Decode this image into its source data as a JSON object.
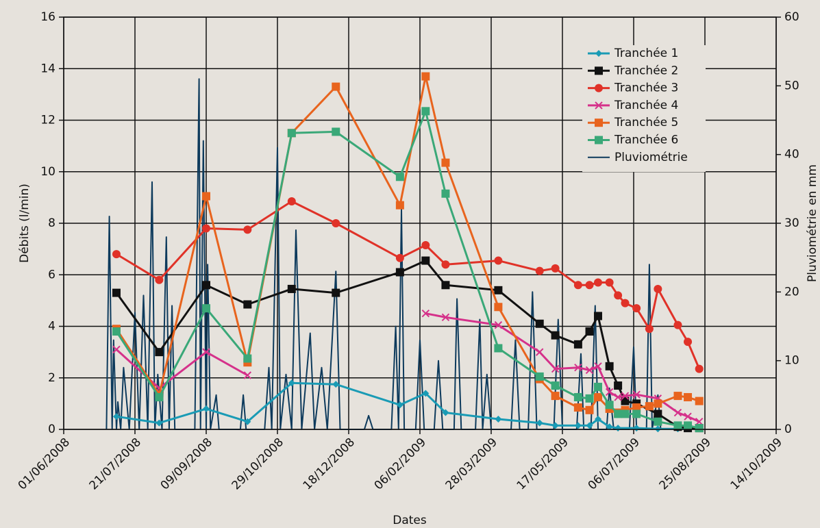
{
  "chart_data": {
    "type": "line",
    "x_label": "Dates",
    "y_label": "Débits (l/min)",
    "y2_label": "Pluviométrie en mm",
    "xlim": [
      "2008-06-01",
      "2009-10-14"
    ],
    "xticks": [
      {
        "value": "2008-06-01",
        "label": "01/06/2008"
      },
      {
        "value": "2008-07-21",
        "label": "21/07/2008"
      },
      {
        "value": "2008-09-09",
        "label": "09/09/2008"
      },
      {
        "value": "2008-10-29",
        "label": "29/10/2008"
      },
      {
        "value": "2008-12-18",
        "label": "18/12/2008"
      },
      {
        "value": "2009-02-06",
        "label": "06/02/2009"
      },
      {
        "value": "2009-03-28",
        "label": "28/03/2009"
      },
      {
        "value": "2009-05-17",
        "label": "17/05/2009"
      },
      {
        "value": "2009-07-06",
        "label": "06/07/2009"
      },
      {
        "value": "2009-08-25",
        "label": "25/08/2009"
      },
      {
        "value": "2009-10-14",
        "label": "14/10/2009"
      }
    ],
    "ylim": [
      0,
      16
    ],
    "yticks": [
      0,
      2,
      4,
      6,
      8,
      10,
      12,
      14,
      16
    ],
    "y2lim": [
      0,
      60
    ],
    "y2ticks": [
      0,
      10,
      20,
      30,
      40,
      50,
      60
    ],
    "grid": true,
    "legend": "upper right",
    "series": [
      {
        "name": "Tranchée 1",
        "color": "#1a9bb5",
        "marker": "diamond",
        "x": [
          "2008-07-08",
          "2008-08-07",
          "2008-09-09",
          "2008-10-08",
          "2008-11-08",
          "2008-12-09",
          "2009-01-23",
          "2009-02-10",
          "2009-02-24",
          "2009-04-02",
          "2009-05-01",
          "2009-05-12",
          "2009-05-28",
          "2009-06-05",
          "2009-06-11",
          "2009-06-19",
          "2009-06-25",
          "2009-07-08",
          "2009-07-23",
          "2009-08-06",
          "2009-08-21"
        ],
        "values": [
          0.5,
          0.25,
          0.8,
          0.3,
          1.8,
          1.75,
          0.95,
          1.4,
          0.65,
          0.4,
          0.25,
          0.15,
          0.15,
          0.15,
          0.4,
          0.1,
          0.05,
          0.05,
          0.02,
          0.02,
          0.02
        ]
      },
      {
        "name": "Tranchée 2",
        "color": "#111111",
        "marker": "square",
        "x": [
          "2008-07-08",
          "2008-08-07",
          "2008-09-09",
          "2008-10-08",
          "2008-11-08",
          "2008-12-09",
          "2009-01-23",
          "2009-02-10",
          "2009-02-24",
          "2009-04-02",
          "2009-05-01",
          "2009-05-12",
          "2009-05-28",
          "2009-06-05",
          "2009-06-11",
          "2009-06-19",
          "2009-06-25",
          "2009-06-30",
          "2009-07-08",
          "2009-07-23",
          "2009-08-06",
          "2009-08-13",
          "2009-08-21"
        ],
        "values": [
          5.3,
          3.0,
          5.6,
          4.85,
          5.45,
          5.3,
          6.1,
          6.55,
          5.6,
          5.4,
          4.1,
          3.65,
          3.3,
          3.8,
          4.4,
          2.45,
          1.7,
          1.1,
          1.0,
          0.6,
          0.1,
          0.05,
          0.05
        ]
      },
      {
        "name": "Tranchée 3",
        "color": "#e03228",
        "marker": "circle",
        "x": [
          "2008-07-08",
          "2008-08-07",
          "2008-09-09",
          "2008-10-08",
          "2008-11-08",
          "2008-12-09",
          "2009-01-23",
          "2009-02-10",
          "2009-02-24",
          "2009-04-02",
          "2009-05-01",
          "2009-05-12",
          "2009-05-28",
          "2009-06-05",
          "2009-06-11",
          "2009-06-19",
          "2009-06-25",
          "2009-06-30",
          "2009-07-08",
          "2009-07-17",
          "2009-07-23",
          "2009-08-06",
          "2009-08-13",
          "2009-08-21"
        ],
        "values": [
          6.8,
          5.8,
          7.8,
          7.75,
          8.85,
          8.0,
          6.65,
          7.15,
          6.4,
          6.55,
          6.15,
          6.25,
          5.6,
          5.6,
          5.7,
          5.7,
          5.2,
          4.9,
          4.7,
          3.9,
          5.45,
          4.05,
          3.4,
          2.35
        ]
      },
      {
        "name": "Tranchée 4",
        "color": "#d5318a",
        "marker": "x",
        "x": [
          "2008-07-08",
          "2008-08-07",
          "2008-09-09",
          "2008-10-08",
          "2008-11-08",
          "2009-02-10",
          "2009-02-24",
          "2009-04-02",
          "2009-05-01",
          "2009-05-12",
          "2009-05-28",
          "2009-06-05",
          "2009-06-11",
          "2009-06-19",
          "2009-06-25",
          "2009-06-30",
          "2009-07-08",
          "2009-07-23",
          "2009-08-06",
          "2009-08-13",
          "2009-08-21"
        ],
        "values": [
          3.1,
          1.6,
          3.0,
          2.1,
          null,
          4.5,
          4.35,
          4.05,
          3.0,
          2.35,
          2.4,
          2.3,
          2.45,
          1.45,
          1.25,
          1.3,
          1.35,
          1.2,
          0.65,
          0.5,
          0.3
        ]
      },
      {
        "name": "Tranchée 5",
        "color": "#e8641e",
        "marker": "square",
        "x": [
          "2008-07-08",
          "2008-08-07",
          "2008-09-09",
          "2008-10-08",
          "2008-11-08",
          "2008-12-09",
          "2009-01-23",
          "2009-02-10",
          "2009-02-24",
          "2009-04-02",
          "2009-05-01",
          "2009-05-12",
          "2009-05-28",
          "2009-06-05",
          "2009-06-11",
          "2009-06-19",
          "2009-06-25",
          "2009-06-30",
          "2009-07-08",
          "2009-07-17",
          "2009-07-23",
          "2009-08-06",
          "2009-08-13",
          "2009-08-21"
        ],
        "values": [
          3.9,
          1.35,
          9.05,
          2.6,
          11.5,
          13.3,
          8.7,
          13.7,
          10.35,
          4.75,
          1.95,
          1.3,
          0.85,
          0.75,
          1.25,
          0.8,
          0.65,
          0.75,
          0.85,
          0.9,
          1.0,
          1.3,
          1.25,
          1.1
        ]
      },
      {
        "name": "Tranchée 6",
        "color": "#3aa878",
        "marker": "square",
        "x": [
          "2008-07-08",
          "2008-08-07",
          "2008-09-09",
          "2008-10-08",
          "2008-11-08",
          "2008-12-09",
          "2009-01-23",
          "2009-02-10",
          "2009-02-24",
          "2009-04-02",
          "2009-05-01",
          "2009-05-12",
          "2009-05-28",
          "2009-06-05",
          "2009-06-11",
          "2009-06-19",
          "2009-06-25",
          "2009-06-30",
          "2009-07-08",
          "2009-07-23",
          "2009-08-06",
          "2009-08-13",
          "2009-08-21"
        ],
        "values": [
          3.8,
          1.25,
          4.7,
          2.75,
          11.5,
          11.55,
          9.8,
          12.35,
          9.15,
          3.15,
          2.05,
          1.7,
          1.25,
          1.2,
          1.65,
          0.95,
          0.6,
          0.6,
          0.6,
          0.3,
          0.15,
          0.15,
          0.05
        ]
      },
      {
        "name": "Pluviométrie",
        "color": "#0d3a5c",
        "axis": "y2",
        "x": [
          "2008-07-01",
          "2008-07-03",
          "2008-07-05",
          "2008-07-06",
          "2008-07-08",
          "2008-07-09",
          "2008-07-11",
          "2008-07-13",
          "2008-07-17",
          "2008-07-21",
          "2008-07-24",
          "2008-07-27",
          "2008-07-30",
          "2008-08-02",
          "2008-08-04",
          "2008-08-06",
          "2008-08-09",
          "2008-08-12",
          "2008-08-14",
          "2008-08-16",
          "2008-08-18",
          "2008-09-01",
          "2008-09-04",
          "2008-09-05",
          "2008-09-07",
          "2008-09-09",
          "2008-09-10",
          "2008-09-12",
          "2008-09-16",
          "2008-09-18",
          "2008-10-03",
          "2008-10-05",
          "2008-10-07",
          "2008-10-20",
          "2008-10-23",
          "2008-10-25",
          "2008-10-29",
          "2008-10-31",
          "2008-11-04",
          "2008-11-08",
          "2008-11-11",
          "2008-11-15",
          "2008-11-21",
          "2008-11-24",
          "2008-11-29",
          "2008-12-03",
          "2008-12-09",
          "2008-12-12",
          "2008-12-29",
          "2009-01-01",
          "2009-01-04",
          "2009-01-17",
          "2009-01-20",
          "2009-01-22",
          "2009-01-24",
          "2009-01-26",
          "2009-02-03",
          "2009-02-06",
          "2009-02-09",
          "2009-02-16",
          "2009-02-19",
          "2009-02-22",
          "2009-03-02",
          "2009-03-04",
          "2009-03-07",
          "2009-03-17",
          "2009-03-20",
          "2009-03-22",
          "2009-03-25",
          "2009-03-28",
          "2009-04-11",
          "2009-04-14",
          "2009-04-17",
          "2009-04-23",
          "2009-04-26",
          "2009-04-29",
          "2009-05-11",
          "2009-05-14",
          "2009-05-17",
          "2009-05-27",
          "2009-05-30",
          "2009-06-01",
          "2009-06-06",
          "2009-06-09",
          "2009-06-11",
          "2009-06-17",
          "2009-06-19",
          "2009-06-22",
          "2009-07-03",
          "2009-07-06",
          "2009-07-08",
          "2009-07-15",
          "2009-07-17",
          "2009-07-19",
          "2009-07-23",
          "2009-07-25"
        ],
        "values": [
          0,
          31,
          0,
          13,
          0,
          4,
          0,
          9,
          0,
          17,
          0,
          19.5,
          0,
          36,
          0,
          8,
          0,
          28,
          0,
          18,
          0,
          0,
          51,
          0,
          42,
          0,
          24,
          0,
          5,
          0,
          0,
          5,
          0,
          0,
          9,
          0,
          41,
          0,
          8,
          0,
          29,
          0,
          14,
          0,
          9,
          0,
          23,
          0,
          0,
          2,
          0,
          0,
          15,
          0,
          32,
          0,
          0,
          13,
          0,
          0,
          10,
          0,
          0,
          19,
          0,
          0,
          16,
          0,
          8,
          0,
          0,
          13,
          0,
          0,
          20,
          0,
          0,
          16,
          0,
          0,
          11,
          0,
          0,
          18,
          0,
          0,
          6,
          0,
          0,
          12,
          0,
          0,
          24,
          0,
          5,
          0
        ]
      }
    ]
  }
}
